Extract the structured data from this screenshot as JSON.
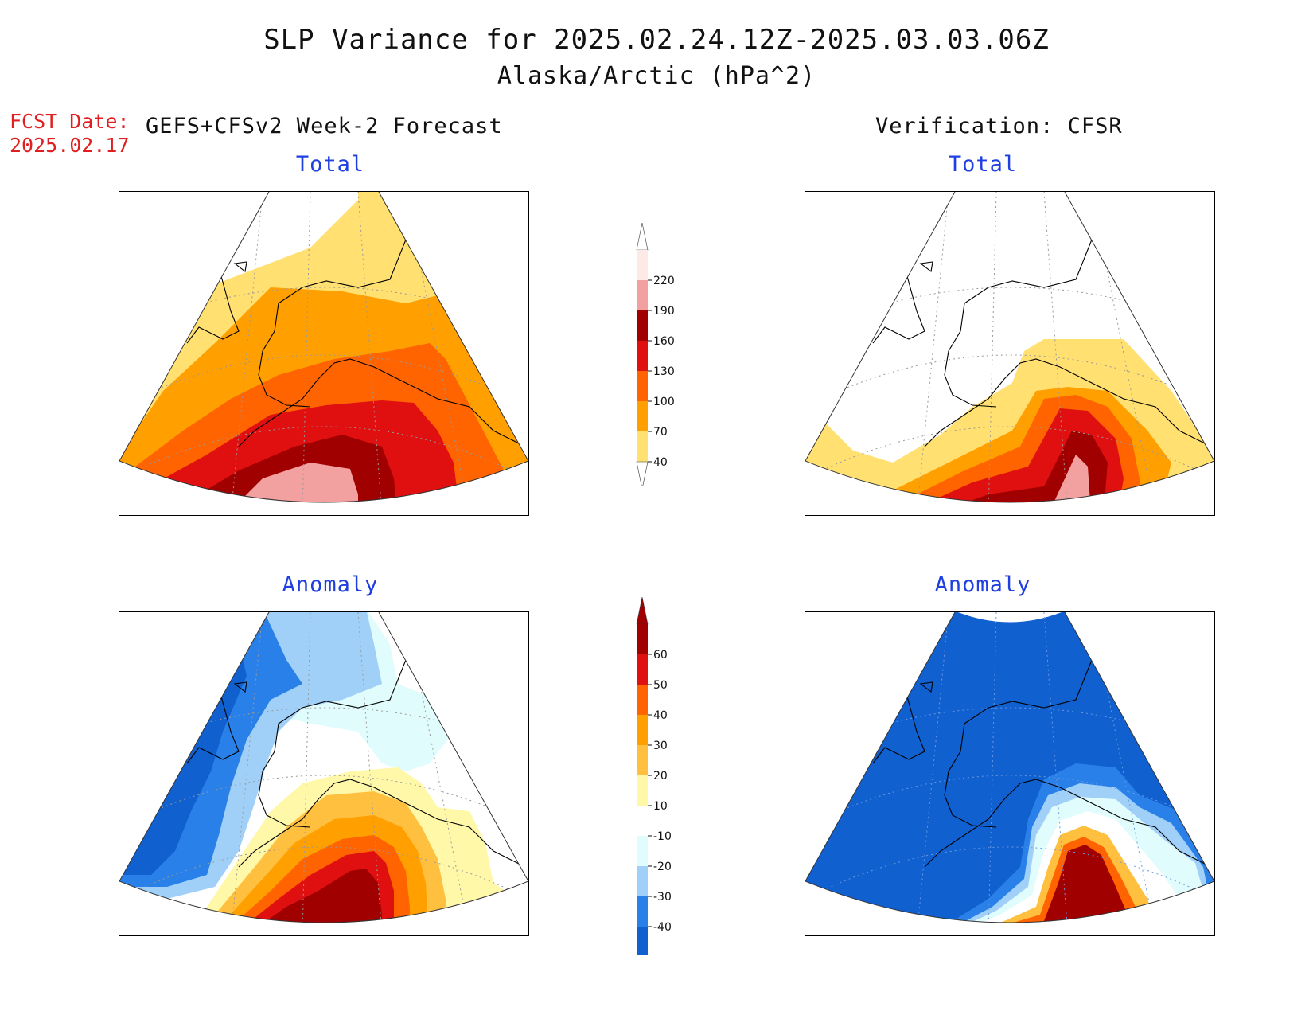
{
  "title": "SLP Variance for 2025.02.24.12Z-2025.03.03.06Z",
  "subtitle": "Alaska/Arctic (hPa^2)",
  "fcst_date_label": "FCST Date:",
  "fcst_date_value": "2025.02.17",
  "left_header": "GEFS+CFSv2 Week-2 Forecast",
  "right_header": "Verification: CFSR",
  "panels": {
    "forecast_total_title": "Total",
    "verification_total_title": "Total",
    "forecast_anomaly_title": "Anomaly",
    "verification_anomaly_title": "Anomaly"
  },
  "total_colorbar": {
    "levels": [
      "220",
      "190",
      "160",
      "130",
      "100",
      "70",
      "40"
    ],
    "colors": [
      "#fde9e6",
      "#f2a0a0",
      "#a00000",
      "#e01010",
      "#ff6400",
      "#ffa000",
      "#ffe070"
    ]
  },
  "anomaly_colorbar": {
    "levels": [
      "60",
      "50",
      "40",
      "30",
      "20",
      "10",
      "-10",
      "-20",
      "-30",
      "-40"
    ],
    "colors": [
      "#a00000",
      "#e01010",
      "#ff6400",
      "#ffa000",
      "#ffc040",
      "#fff8a8",
      "#ffffff",
      "#e0fcfc",
      "#a0d0f8",
      "#2880e8",
      "#1060d0"
    ]
  },
  "palette": {
    "title_red": "#e02020",
    "panel_title_blue": "#1f3fe0"
  }
}
